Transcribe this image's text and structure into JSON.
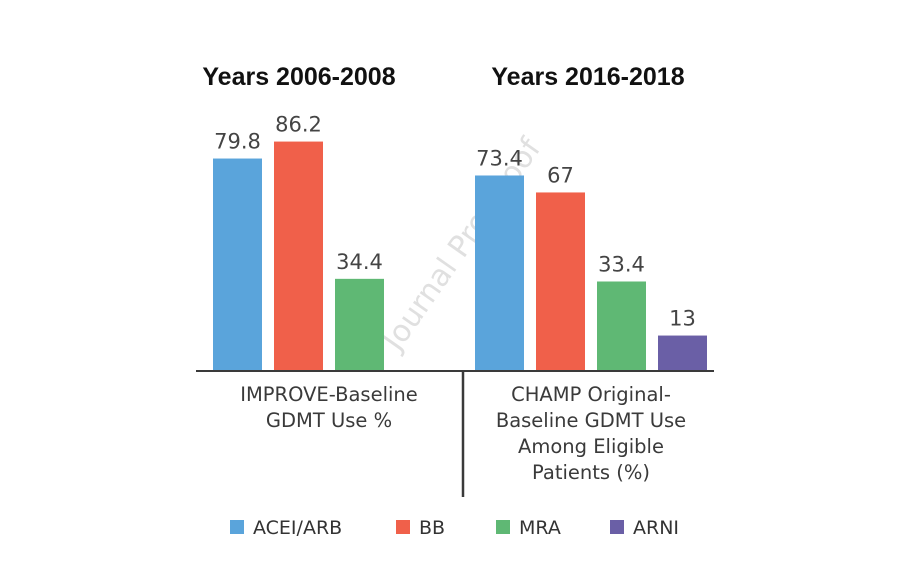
{
  "chart_data": {
    "type": "bar",
    "watermark": "Journal Pre-proof",
    "series": [
      {
        "name": "ACEI/ARB",
        "color": "#5aa4db"
      },
      {
        "name": "BB",
        "color": "#f0604a"
      },
      {
        "name": "MRA",
        "color": "#5fb874"
      },
      {
        "name": "ARNI",
        "color": "#6a5fa6"
      }
    ],
    "groups": [
      {
        "title": "Years 2006-2008",
        "label_lines": [
          "IMPROVE-Baseline",
          "GDMT Use %"
        ],
        "values": [
          79.8,
          86.2,
          34.4
        ],
        "value_labels": [
          "79.8",
          "86.2",
          "34.4"
        ]
      },
      {
        "title": "Years 2016-2018",
        "label_lines": [
          "CHAMP Original-",
          "Baseline GDMT Use",
          "Among Eligible",
          "Patients (%)"
        ],
        "values": [
          73.4,
          67,
          33.4,
          13
        ],
        "value_labels": [
          "73.4",
          "67",
          "33.4",
          "13"
        ]
      }
    ],
    "ylim": [
      0,
      100
    ],
    "legend": [
      "ACEI/ARB",
      "BB",
      "MRA",
      "ARNI"
    ],
    "legend_position": "bottom"
  }
}
